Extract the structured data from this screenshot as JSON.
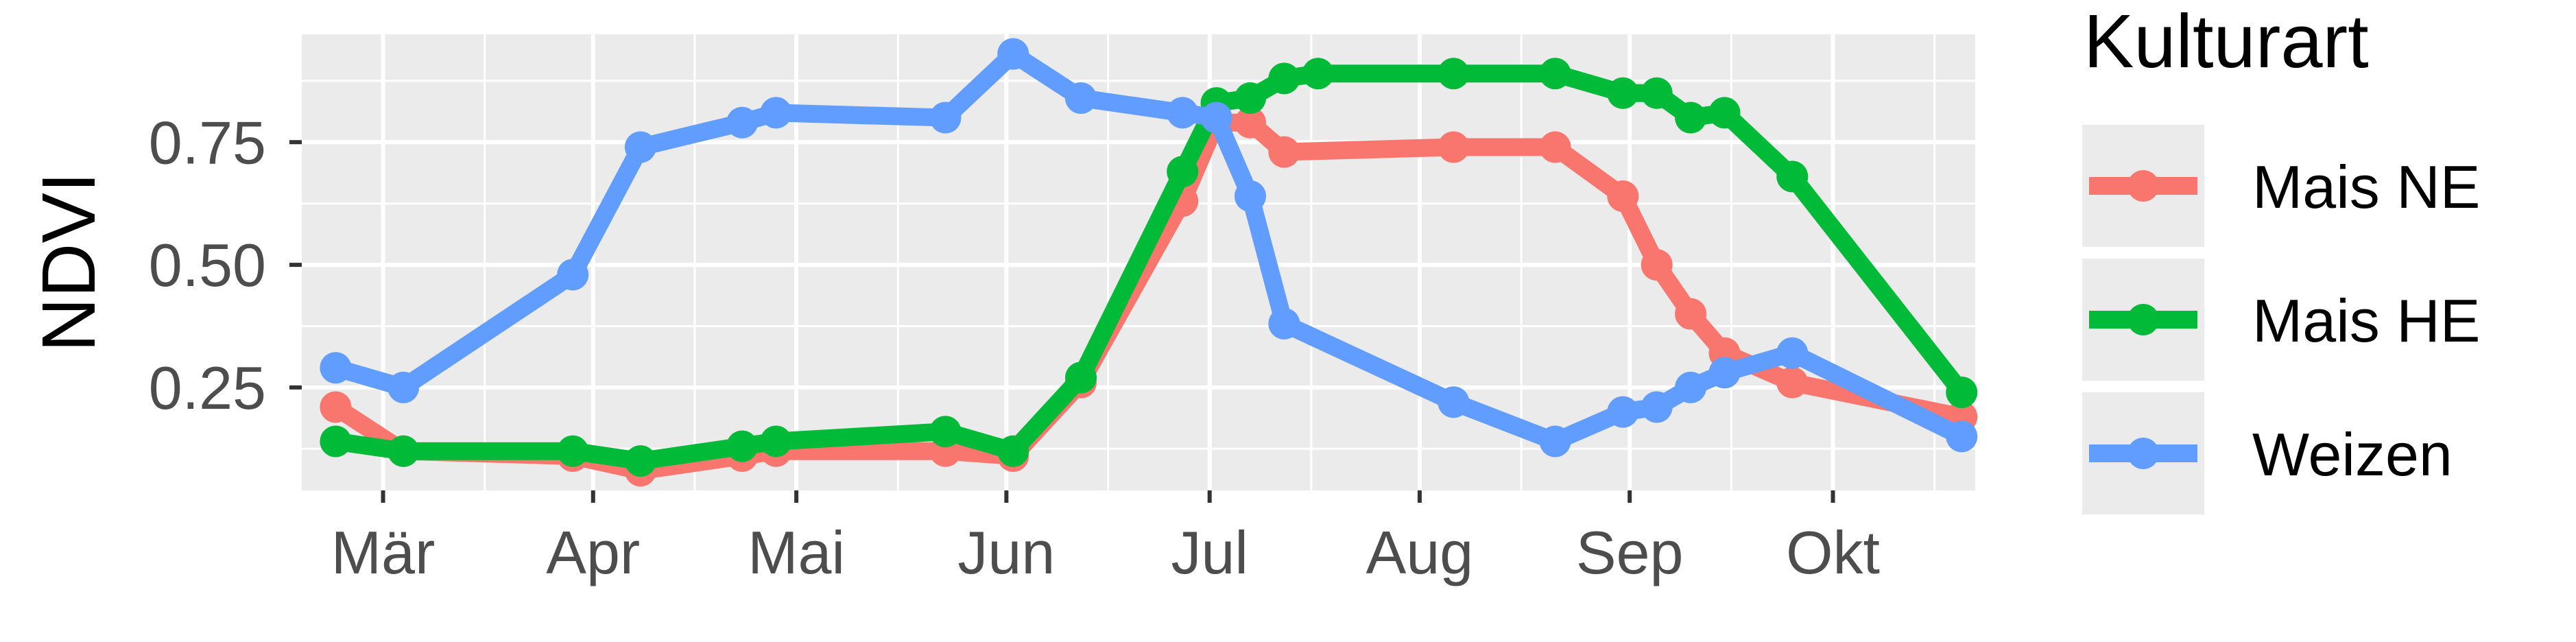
{
  "chart_data": {
    "type": "line",
    "xlabel": "",
    "ylabel": "NDVI",
    "x_axis": {
      "scale": "date",
      "range": [
        "2019-02-17",
        "2019-10-22"
      ],
      "ticks": [
        {
          "date": "2019-03-01",
          "label": "Mär"
        },
        {
          "date": "2019-04-01",
          "label": "Apr"
        },
        {
          "date": "2019-05-01",
          "label": "Mai"
        },
        {
          "date": "2019-06-01",
          "label": "Jun"
        },
        {
          "date": "2019-07-01",
          "label": "Jul"
        },
        {
          "date": "2019-08-01",
          "label": "Aug"
        },
        {
          "date": "2019-09-01",
          "label": "Sep"
        },
        {
          "date": "2019-10-01",
          "label": "Okt"
        }
      ]
    },
    "y_axis": {
      "range": [
        0.04,
        0.97
      ],
      "ticks": [
        {
          "value": 0.25,
          "label": "0.25"
        },
        {
          "value": 0.5,
          "label": "0.50"
        },
        {
          "value": 0.75,
          "label": "0.75"
        }
      ]
    },
    "grid": true,
    "legend": {
      "title": "Kulturart",
      "position": "right"
    },
    "series": [
      {
        "name": "Mais NE",
        "color": "#F8766D",
        "points": [
          {
            "x": "2019-02-22",
            "y": 0.21
          },
          {
            "x": "2019-03-04",
            "y": 0.12
          },
          {
            "x": "2019-03-29",
            "y": 0.11
          },
          {
            "x": "2019-04-08",
            "y": 0.08
          },
          {
            "x": "2019-04-23",
            "y": 0.11
          },
          {
            "x": "2019-04-28",
            "y": 0.12
          },
          {
            "x": "2019-05-23",
            "y": 0.12
          },
          {
            "x": "2019-06-02",
            "y": 0.11
          },
          {
            "x": "2019-06-12",
            "y": 0.26
          },
          {
            "x": "2019-06-27",
            "y": 0.63
          },
          {
            "x": "2019-07-02",
            "y": 0.79
          },
          {
            "x": "2019-07-07",
            "y": 0.79
          },
          {
            "x": "2019-07-12",
            "y": 0.73
          },
          {
            "x": "2019-08-06",
            "y": 0.74
          },
          {
            "x": "2019-08-21",
            "y": 0.74
          },
          {
            "x": "2019-08-31",
            "y": 0.64
          },
          {
            "x": "2019-09-05",
            "y": 0.5
          },
          {
            "x": "2019-09-10",
            "y": 0.4
          },
          {
            "x": "2019-09-15",
            "y": 0.32
          },
          {
            "x": "2019-09-25",
            "y": 0.26
          },
          {
            "x": "2019-10-20",
            "y": 0.19
          }
        ]
      },
      {
        "name": "Mais HE",
        "color": "#00BA38",
        "points": [
          {
            "x": "2019-02-22",
            "y": 0.14
          },
          {
            "x": "2019-03-04",
            "y": 0.12
          },
          {
            "x": "2019-03-29",
            "y": 0.12
          },
          {
            "x": "2019-04-08",
            "y": 0.1
          },
          {
            "x": "2019-04-23",
            "y": 0.13
          },
          {
            "x": "2019-04-28",
            "y": 0.14
          },
          {
            "x": "2019-05-23",
            "y": 0.16
          },
          {
            "x": "2019-06-02",
            "y": 0.12
          },
          {
            "x": "2019-06-12",
            "y": 0.27
          },
          {
            "x": "2019-06-27",
            "y": 0.69
          },
          {
            "x": "2019-07-02",
            "y": 0.83
          },
          {
            "x": "2019-07-07",
            "y": 0.84
          },
          {
            "x": "2019-07-12",
            "y": 0.88
          },
          {
            "x": "2019-07-17",
            "y": 0.89
          },
          {
            "x": "2019-08-06",
            "y": 0.89
          },
          {
            "x": "2019-08-21",
            "y": 0.89
          },
          {
            "x": "2019-08-31",
            "y": 0.85
          },
          {
            "x": "2019-09-05",
            "y": 0.85
          },
          {
            "x": "2019-09-10",
            "y": 0.8
          },
          {
            "x": "2019-09-15",
            "y": 0.81
          },
          {
            "x": "2019-09-25",
            "y": 0.68
          },
          {
            "x": "2019-10-20",
            "y": 0.24
          }
        ]
      },
      {
        "name": "Weizen",
        "color": "#619CFF",
        "points": [
          {
            "x": "2019-02-22",
            "y": 0.29
          },
          {
            "x": "2019-03-04",
            "y": 0.25
          },
          {
            "x": "2019-03-29",
            "y": 0.48
          },
          {
            "x": "2019-04-08",
            "y": 0.74
          },
          {
            "x": "2019-04-23",
            "y": 0.79
          },
          {
            "x": "2019-04-28",
            "y": 0.81
          },
          {
            "x": "2019-05-23",
            "y": 0.8
          },
          {
            "x": "2019-06-02",
            "y": 0.93
          },
          {
            "x": "2019-06-12",
            "y": 0.84
          },
          {
            "x": "2019-06-27",
            "y": 0.81
          },
          {
            "x": "2019-07-02",
            "y": 0.8
          },
          {
            "x": "2019-07-07",
            "y": 0.64
          },
          {
            "x": "2019-07-12",
            "y": 0.38
          },
          {
            "x": "2019-08-06",
            "y": 0.22
          },
          {
            "x": "2019-08-21",
            "y": 0.14
          },
          {
            "x": "2019-08-31",
            "y": 0.2
          },
          {
            "x": "2019-09-05",
            "y": 0.21
          },
          {
            "x": "2019-09-10",
            "y": 0.25
          },
          {
            "x": "2019-09-15",
            "y": 0.28
          },
          {
            "x": "2019-09-25",
            "y": 0.32
          },
          {
            "x": "2019-10-20",
            "y": 0.15
          }
        ]
      }
    ]
  }
}
